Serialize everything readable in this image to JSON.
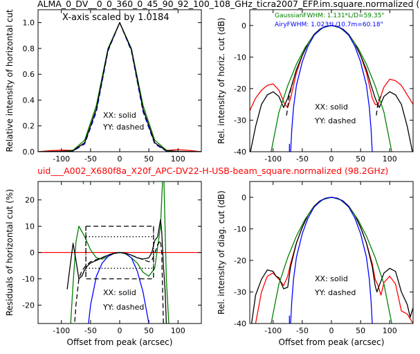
{
  "titles": {
    "top": "ALMA_0_DV__0_0_360_0_45_90_92_100_108_GHz_ticra2007_EFP.im.square.normalized (",
    "bottom": "uid___A002_X680f8a_X20f_APC-DV22-H-USB-beam_square.normalized (98.2GHz)"
  },
  "colors": {
    "red": "#ff0000",
    "green": "#008000",
    "blue": "#0000ff",
    "black": "#000000"
  },
  "chart_data": [
    {
      "type": "line",
      "ylabel": "Relative intensity of horizontal cut",
      "xlim": [
        -140,
        140
      ],
      "ylim": [
        0,
        1.1
      ],
      "xticks": [
        "-100",
        "-50",
        "0",
        "50",
        "100"
      ],
      "yticks": [
        "0.0",
        "0.2",
        "0.4",
        "0.6",
        "0.8",
        "1.0"
      ],
      "annotations": [
        "X-axis scaled by 1.0184",
        "XX: solid",
        "YY: dashed"
      ],
      "series": [
        {
          "color": "red",
          "style": "solid",
          "x": [
            -140,
            -120,
            -100,
            -80,
            -60,
            -40,
            -20,
            0,
            20,
            40,
            60,
            80,
            100,
            120,
            140
          ],
          "y": [
            0.0,
            0.008,
            0.012,
            0.01,
            0.07,
            0.33,
            0.79,
            1.0,
            0.79,
            0.33,
            0.07,
            0.01,
            0.016,
            0.01,
            0.0
          ]
        },
        {
          "color": "blue",
          "style": "dashed",
          "x": [
            -140,
            -120,
            -100,
            -80,
            -60,
            -40,
            -20,
            0,
            20,
            40,
            60,
            80,
            100,
            120,
            140
          ],
          "y": [
            0.0,
            0.0,
            0.0,
            0.005,
            0.06,
            0.31,
            0.78,
            1.0,
            0.78,
            0.31,
            0.06,
            0.005,
            0.0,
            0.0,
            0.0
          ]
        },
        {
          "color": "green",
          "style": "solid",
          "x": [
            -140,
            -100,
            -80,
            -60,
            -40,
            -20,
            0,
            20,
            40,
            60,
            80,
            100,
            140
          ],
          "y": [
            0.0,
            0.0,
            0.012,
            0.09,
            0.36,
            0.8,
            1.0,
            0.8,
            0.36,
            0.09,
            0.012,
            0.0,
            0.0
          ]
        },
        {
          "color": "black",
          "style": "solid",
          "x": [
            -140,
            -100,
            -80,
            -60,
            -40,
            -20,
            0,
            20,
            40,
            60,
            80,
            100,
            140
          ],
          "y": [
            0.0,
            0.003,
            0.007,
            0.07,
            0.33,
            0.79,
            1.0,
            0.79,
            0.33,
            0.07,
            0.007,
            0.003,
            0.0
          ]
        }
      ]
    },
    {
      "type": "line",
      "ylabel": "Rel. intensity of horiz. cut (dB)",
      "xlim": [
        -140,
        140
      ],
      "ylim": [
        -40,
        5
      ],
      "xticks": [
        "-100",
        "-50",
        "0",
        "50",
        "100"
      ],
      "yticks": [
        "0",
        "-10",
        "-20",
        "-30",
        "-40"
      ],
      "annotations": [
        "GaussianFWHM: 1.131*L/D=59.35\"",
        "AiryFWHM: 1.023*L/10.7m=60.18\"",
        "XX: solid",
        "YY: dashed"
      ],
      "series": [
        {
          "color": "red",
          "style": "solid",
          "x": [
            -140,
            -130,
            -120,
            -110,
            -100,
            -90,
            -80,
            -75,
            -70,
            -60,
            -50,
            -40,
            -30,
            -20,
            -10,
            0,
            10,
            20,
            30,
            40,
            50,
            60,
            70,
            75,
            80,
            90,
            100,
            110,
            120,
            130,
            140
          ],
          "y": [
            -27,
            -23,
            -20.5,
            -19,
            -18.5,
            -20.5,
            -25,
            -26,
            -23,
            -15,
            -9.5,
            -5.6,
            -2.9,
            -1.2,
            -0.3,
            0,
            -0.3,
            -1.2,
            -2.9,
            -5.6,
            -9.5,
            -15,
            -23,
            -25,
            -25,
            -19.5,
            -17,
            -17.5,
            -19,
            -22,
            -25
          ]
        },
        {
          "color": "black",
          "style": "solid",
          "x": [
            -140,
            -130,
            -120,
            -110,
            -100,
            -90,
            -82,
            -75,
            -68,
            -60,
            -50,
            -40,
            -30,
            -20,
            -10,
            0,
            10,
            20,
            30,
            40,
            50,
            60,
            68,
            75,
            82,
            90,
            100,
            110,
            120,
            130,
            140
          ],
          "y": [
            -41,
            -32,
            -25,
            -22,
            -21,
            -22.5,
            -26,
            -23,
            -19,
            -14,
            -9.5,
            -5.7,
            -2.9,
            -1.2,
            -0.3,
            0,
            -0.3,
            -1.2,
            -2.9,
            -5.7,
            -9.5,
            -14,
            -19,
            -23,
            -26,
            -22.5,
            -21,
            -22,
            -25,
            -32,
            -41
          ]
        },
        {
          "color": "black",
          "style": "dashed",
          "x": [
            -77,
            -72,
            -65
          ],
          "y": [
            -28.5,
            -22,
            -17
          ]
        },
        {
          "color": "black",
          "style": "dashed",
          "x": [
            77,
            80,
            86
          ],
          "y": [
            -28.5,
            -24,
            -22
          ]
        },
        {
          "color": "green",
          "style": "solid",
          "x": [
            -105,
            -90,
            -75,
            -60,
            -45,
            -30,
            -15,
            0,
            15,
            30,
            45,
            60,
            75,
            90,
            105
          ],
          "y": [
            -41.5,
            -27.5,
            -19.1,
            -12.3,
            -6.9,
            -3.05,
            -0.76,
            0,
            -0.76,
            -3.05,
            -6.9,
            -12.3,
            -19.1,
            -27.5,
            -41.5
          ]
        },
        {
          "color": "blue",
          "style": "solid",
          "x": [
            -70,
            -68,
            -65,
            -60,
            -50,
            -40,
            -30,
            -20,
            -10,
            0,
            10,
            20,
            30,
            40,
            50,
            60,
            65,
            68,
            70
          ],
          "y": [
            -40,
            -33,
            -26,
            -19,
            -11.5,
            -6.5,
            -3.2,
            -1.3,
            -0.3,
            0,
            -0.3,
            -1.3,
            -3.2,
            -6.5,
            -11.5,
            -19,
            -26,
            -33,
            -40
          ]
        },
        {
          "color": "blue",
          "style": "solid",
          "x": [
            -72,
            -72
          ],
          "y": [
            -40,
            -37.5
          ]
        }
      ]
    },
    {
      "type": "line",
      "ylabel": "Residuals of horizontal cut (%)",
      "xlabel": "Offset from peak (arcsec)",
      "xlim": [
        -140,
        140
      ],
      "ylim": [
        -27,
        27
      ],
      "xticks": [
        "-100",
        "-50",
        "0",
        "50",
        "100"
      ],
      "yticks": [
        "20",
        "10",
        "0",
        "-10",
        "-20"
      ],
      "annotations": [
        "XX: solid",
        "YY: dashed"
      ],
      "series": [
        {
          "color": "red",
          "style": "solid",
          "x": [
            -140,
            140
          ],
          "y": [
            0,
            0
          ]
        },
        {
          "color": "green",
          "style": "solid",
          "x": [
            -85,
            -80,
            -75,
            -70,
            -60,
            -50,
            -40,
            -30,
            -20,
            -10,
            0,
            10,
            20,
            30,
            40,
            50,
            60,
            70,
            75,
            80,
            85
          ],
          "y": [
            -30,
            -12,
            4,
            10,
            6,
            1,
            -2,
            -2.5,
            -1.5,
            -0.4,
            0,
            -0.5,
            -2,
            -4,
            -7.5,
            -9,
            -6,
            10,
            35,
            -10,
            -30
          ]
        },
        {
          "color": "green",
          "style": "solid",
          "x": [
            -65,
            -62
          ],
          "y": [
            30,
            26
          ]
        },
        {
          "color": "green",
          "style": "solid",
          "x": [
            58,
            60
          ],
          "y": [
            26,
            30
          ]
        },
        {
          "color": "blue",
          "style": "solid",
          "x": [
            -55,
            -50,
            -40,
            -30,
            -20,
            -10,
            0,
            10,
            20,
            30,
            40,
            50
          ],
          "y": [
            -30,
            -20,
            -9,
            -4,
            -1.5,
            -0.3,
            0,
            -0.3,
            -2,
            -7,
            -15,
            -27
          ]
        },
        {
          "color": "black",
          "style": "solid",
          "x": [
            -90,
            -85,
            -80,
            -75,
            -70,
            -65,
            -60,
            -55,
            -50,
            -40,
            -30,
            -20,
            -10,
            0,
            10,
            20,
            30,
            40,
            50,
            55,
            60,
            65,
            70,
            72,
            75,
            78,
            80
          ],
          "y": [
            -14,
            -5,
            3.5,
            -3,
            -10,
            -9,
            -6.5,
            -5,
            -4,
            -3,
            -2,
            -1,
            -0.3,
            0,
            -0.3,
            -1,
            -2,
            -2.5,
            -2,
            0,
            4.5,
            6,
            12.5,
            8,
            -5,
            -15,
            -27
          ]
        },
        {
          "color": "black",
          "style": "dashed",
          "x": [
            -80,
            -75,
            -70,
            -65,
            -60,
            -55,
            -50,
            -40,
            -30,
            -20,
            -10,
            0,
            10,
            20,
            30,
            40,
            50,
            55,
            60,
            65,
            70,
            72,
            75
          ],
          "y": [
            -35,
            -20,
            -10,
            -7,
            -5.5,
            -4.5,
            -3.5,
            -2.7,
            -1.9,
            -1,
            -0.3,
            0,
            -0.3,
            -1,
            -1.9,
            -2.7,
            -3.5,
            -3,
            -0.5,
            3,
            4.5,
            0,
            -27
          ]
        },
        {
          "color": "black",
          "style": "dashed",
          "x": [
            -58,
            58,
            58,
            -58,
            -58
          ],
          "y": [
            10,
            10,
            -10,
            -10,
            10
          ]
        },
        {
          "color": "black",
          "style": "dotted",
          "x": [
            -58,
            58
          ],
          "y": [
            6,
            6
          ]
        },
        {
          "color": "black",
          "style": "dotted",
          "x": [
            -58,
            58
          ],
          "y": [
            -6,
            -6
          ]
        },
        {
          "color": "black",
          "style": "dotted",
          "x": [
            -58,
            -58
          ],
          "y": [
            10,
            -10
          ]
        },
        {
          "color": "black",
          "style": "dotted",
          "x": [
            58,
            58
          ],
          "y": [
            10,
            -10
          ]
        }
      ]
    },
    {
      "type": "line",
      "ylabel": "Rel. intensity of diag. cut (dB)",
      "xlabel": "Offset from peak (arcsec)",
      "xlim": [
        -140,
        140
      ],
      "ylim": [
        -40,
        5
      ],
      "xticks": [
        "-100",
        "-50",
        "0",
        "50",
        "100"
      ],
      "yticks": [
        "0",
        "-10",
        "-20",
        "-30",
        "-40"
      ],
      "annotations": [
        "XX: solid",
        "YY: dashed"
      ],
      "series": [
        {
          "color": "red",
          "style": "solid",
          "x": [
            -130,
            -120,
            -110,
            -100,
            -90,
            -82,
            -75,
            -70,
            -60,
            -50,
            -40,
            -30,
            -20,
            -10,
            0,
            10,
            20,
            30,
            40,
            50,
            60,
            70,
            75,
            80,
            85,
            90,
            100,
            110,
            120,
            130,
            140
          ],
          "y": [
            -40,
            -30,
            -25,
            -24,
            -26,
            -28,
            -25,
            -21,
            -14.5,
            -9.5,
            -5.6,
            -2.9,
            -1.2,
            -0.3,
            0,
            -0.3,
            -1.2,
            -2.9,
            -5.6,
            -9.5,
            -14.5,
            -21,
            -26,
            -28,
            -31,
            -27,
            -25,
            -27.5,
            -36,
            -37,
            -40
          ]
        },
        {
          "color": "black",
          "style": "solid",
          "x": [
            -140,
            -130,
            -120,
            -110,
            -100,
            -95,
            -90,
            -82,
            -75,
            -70,
            -60,
            -50,
            -40,
            -30,
            -20,
            -10,
            0,
            10,
            20,
            30,
            40,
            50,
            60,
            70,
            75,
            78,
            82,
            90,
            100,
            110,
            120,
            130,
            135,
            140
          ],
          "y": [
            -44,
            -31,
            -26,
            -23,
            -23.5,
            -25,
            -25.5,
            -29,
            -28.5,
            -22,
            -14.5,
            -9.5,
            -5.6,
            -2.9,
            -1.2,
            -0.3,
            0,
            -0.3,
            -1.2,
            -2.9,
            -5.6,
            -9.5,
            -14.5,
            -22,
            -28,
            -30,
            -28,
            -24,
            -22.5,
            -23.5,
            -30,
            -34,
            -38,
            -35
          ]
        },
        {
          "color": "green",
          "style": "solid",
          "x": [
            -105,
            -90,
            -75,
            -60,
            -45,
            -30,
            -15,
            0,
            15,
            30,
            45,
            60,
            75,
            90,
            105
          ],
          "y": [
            -41.5,
            -27.5,
            -19.1,
            -12.3,
            -6.9,
            -3.05,
            -0.76,
            0,
            -0.76,
            -3.05,
            -6.9,
            -12.3,
            -19.1,
            -27.5,
            -41.5
          ]
        },
        {
          "color": "blue",
          "style": "solid",
          "x": [
            -70,
            -68,
            -65,
            -60,
            -50,
            -40,
            -30,
            -20,
            -10,
            0,
            10,
            20,
            30,
            40,
            50,
            60,
            65,
            68,
            70
          ],
          "y": [
            -40,
            -33,
            -26,
            -19,
            -11.5,
            -6.5,
            -3.2,
            -1.3,
            -0.3,
            0,
            -0.3,
            -1.3,
            -3.2,
            -6.5,
            -11.5,
            -19,
            -26,
            -33,
            -40
          ]
        },
        {
          "color": "blue",
          "style": "solid",
          "x": [
            -72,
            -72
          ],
          "y": [
            -40,
            -37.5
          ]
        }
      ]
    }
  ]
}
